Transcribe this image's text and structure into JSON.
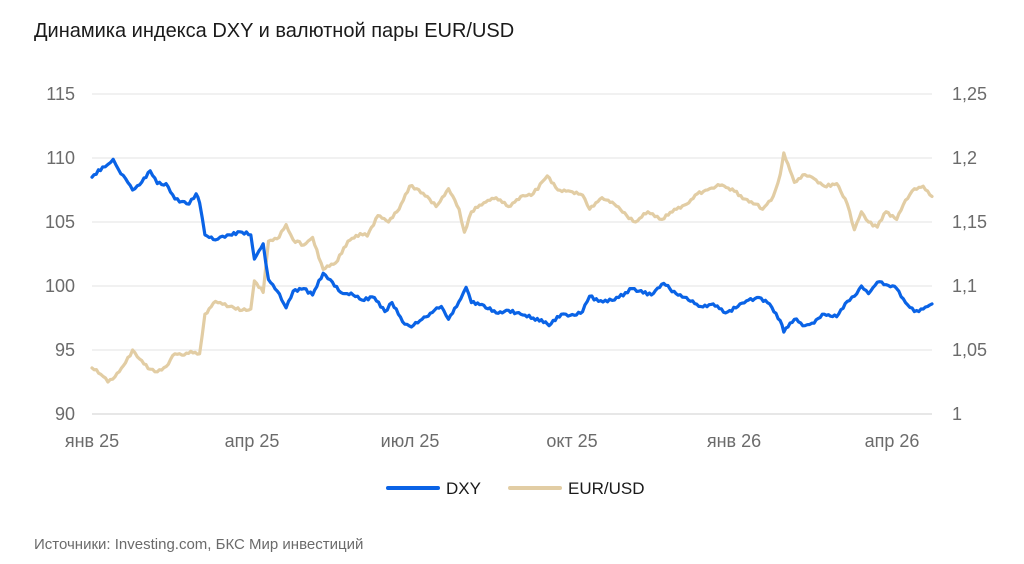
{
  "title": "Динамика индекса DXY и валютной пары EUR/USD",
  "source": "Источники: Investing.com, БКС Мир инвестиций",
  "chart_data": {
    "type": "line",
    "title": "Динамика индекса DXY и валютной пары EUR/USD",
    "x_ticks": [
      "янв 25",
      "апр 25",
      "июл 25",
      "окт 25",
      "янв 26",
      "апр 26"
    ],
    "y_left_ticks": [
      "90",
      "95",
      "100",
      "105",
      "110",
      "115"
    ],
    "y_right_ticks": [
      "1",
      "1,05",
      "1,1",
      "1,15",
      "1,2",
      "1,25"
    ],
    "y_left_range": [
      90,
      115
    ],
    "y_right_range": [
      1.0,
      1.25
    ],
    "x_range": [
      "2025-01-01",
      "2026-04-22"
    ],
    "grid": true,
    "legend_position": "bottom",
    "colors": {
      "DXY": "#0a63e6",
      "EUR/USD": "#e2cda4",
      "grid": "#e3e3e3"
    },
    "series": [
      {
        "name": "DXY",
        "axis": "left",
        "points": [
          [
            "2025-01-01",
            108.5
          ],
          [
            "2025-01-07",
            109.3
          ],
          [
            "2025-01-10",
            109.5
          ],
          [
            "2025-01-13",
            109.9
          ],
          [
            "2025-01-16",
            109.1
          ],
          [
            "2025-01-20",
            108.4
          ],
          [
            "2025-01-24",
            107.5
          ],
          [
            "2025-01-28",
            107.9
          ],
          [
            "2025-02-03",
            109.0
          ],
          [
            "2025-02-07",
            108.0
          ],
          [
            "2025-02-12",
            108.0
          ],
          [
            "2025-02-17",
            106.8
          ],
          [
            "2025-02-21",
            106.6
          ],
          [
            "2025-02-25",
            106.4
          ],
          [
            "2025-03-01",
            107.2
          ],
          [
            "2025-03-03",
            106.5
          ],
          [
            "2025-03-06",
            104.0
          ],
          [
            "2025-03-12",
            103.6
          ],
          [
            "2025-03-20",
            104.0
          ],
          [
            "2025-03-27",
            104.2
          ],
          [
            "2025-04-01",
            104.0
          ],
          [
            "2025-04-03",
            102.1
          ],
          [
            "2025-04-08",
            103.3
          ],
          [
            "2025-04-11",
            100.5
          ],
          [
            "2025-04-16",
            99.6
          ],
          [
            "2025-04-21",
            98.3
          ],
          [
            "2025-04-25",
            99.6
          ],
          [
            "2025-05-01",
            99.8
          ],
          [
            "2025-05-06",
            99.3
          ],
          [
            "2025-05-12",
            101.0
          ],
          [
            "2025-05-16",
            100.5
          ],
          [
            "2025-05-22",
            99.5
          ],
          [
            "2025-05-29",
            99.3
          ],
          [
            "2025-06-03",
            98.9
          ],
          [
            "2025-06-10",
            99.1
          ],
          [
            "2025-06-16",
            98.0
          ],
          [
            "2025-06-20",
            98.7
          ],
          [
            "2025-06-26",
            97.2
          ],
          [
            "2025-07-01",
            96.8
          ],
          [
            "2025-07-07",
            97.4
          ],
          [
            "2025-07-14",
            98.1
          ],
          [
            "2025-07-18",
            98.4
          ],
          [
            "2025-07-22",
            97.4
          ],
          [
            "2025-07-29",
            99.0
          ],
          [
            "2025-08-01",
            99.9
          ],
          [
            "2025-08-04",
            98.7
          ],
          [
            "2025-08-11",
            98.5
          ],
          [
            "2025-08-18",
            97.9
          ],
          [
            "2025-08-25",
            98.1
          ],
          [
            "2025-09-01",
            97.8
          ],
          [
            "2025-09-08",
            97.5
          ],
          [
            "2025-09-15",
            97.2
          ],
          [
            "2025-09-17",
            96.9
          ],
          [
            "2025-09-24",
            97.8
          ],
          [
            "2025-09-29",
            97.7
          ],
          [
            "2025-10-06",
            98.0
          ],
          [
            "2025-10-10",
            99.2
          ],
          [
            "2025-10-15",
            98.8
          ],
          [
            "2025-10-24",
            98.9
          ],
          [
            "2025-11-03",
            99.8
          ],
          [
            "2025-11-07",
            99.6
          ],
          [
            "2025-11-14",
            99.3
          ],
          [
            "2025-11-21",
            100.2
          ],
          [
            "2025-11-28",
            99.4
          ],
          [
            "2025-12-05",
            98.9
          ],
          [
            "2025-12-12",
            98.4
          ],
          [
            "2025-12-19",
            98.6
          ],
          [
            "2025-12-26",
            97.9
          ],
          [
            "2026-01-02",
            98.4
          ],
          [
            "2026-01-08",
            98.9
          ],
          [
            "2026-01-14",
            99.1
          ],
          [
            "2026-01-20",
            98.6
          ],
          [
            "2026-01-26",
            97.3
          ],
          [
            "2026-01-28",
            96.4
          ],
          [
            "2026-02-03",
            97.4
          ],
          [
            "2026-02-09",
            96.9
          ],
          [
            "2026-02-13",
            97.1
          ],
          [
            "2026-02-20",
            97.8
          ],
          [
            "2026-02-27",
            97.6
          ],
          [
            "2026-03-05",
            98.8
          ],
          [
            "2026-03-09",
            99.2
          ],
          [
            "2026-03-13",
            100.0
          ],
          [
            "2026-03-17",
            99.4
          ],
          [
            "2026-03-22",
            100.3
          ],
          [
            "2026-03-27",
            100.1
          ],
          [
            "2026-04-02",
            99.8
          ],
          [
            "2026-04-07",
            98.7
          ],
          [
            "2026-04-12",
            98.0
          ],
          [
            "2026-04-17",
            98.2
          ],
          [
            "2026-04-22",
            98.6
          ]
        ]
      },
      {
        "name": "EUR/USD",
        "axis": "right",
        "points": [
          [
            "2025-01-01",
            1.036
          ],
          [
            "2025-01-06",
            1.031
          ],
          [
            "2025-01-10",
            1.025
          ],
          [
            "2025-01-14",
            1.029
          ],
          [
            "2025-01-20",
            1.04
          ],
          [
            "2025-01-24",
            1.05
          ],
          [
            "2025-01-28",
            1.043
          ],
          [
            "2025-02-03",
            1.035
          ],
          [
            "2025-02-07",
            1.033
          ],
          [
            "2025-02-12",
            1.037
          ],
          [
            "2025-02-17",
            1.047
          ],
          [
            "2025-02-21",
            1.046
          ],
          [
            "2025-02-26",
            1.049
          ],
          [
            "2025-03-03",
            1.047
          ],
          [
            "2025-03-06",
            1.078
          ],
          [
            "2025-03-12",
            1.088
          ],
          [
            "2025-03-20",
            1.084
          ],
          [
            "2025-03-27",
            1.081
          ],
          [
            "2025-04-01",
            1.082
          ],
          [
            "2025-04-03",
            1.104
          ],
          [
            "2025-04-08",
            1.095
          ],
          [
            "2025-04-11",
            1.135
          ],
          [
            "2025-04-17",
            1.138
          ],
          [
            "2025-04-21",
            1.148
          ],
          [
            "2025-04-25",
            1.136
          ],
          [
            "2025-05-01",
            1.132
          ],
          [
            "2025-05-06",
            1.138
          ],
          [
            "2025-05-12",
            1.113
          ],
          [
            "2025-05-19",
            1.118
          ],
          [
            "2025-05-26",
            1.135
          ],
          [
            "2025-06-02",
            1.141
          ],
          [
            "2025-06-06",
            1.139
          ],
          [
            "2025-06-12",
            1.155
          ],
          [
            "2025-06-18",
            1.15
          ],
          [
            "2025-06-24",
            1.16
          ],
          [
            "2025-06-30",
            1.178
          ],
          [
            "2025-07-04",
            1.176
          ],
          [
            "2025-07-10",
            1.17
          ],
          [
            "2025-07-15",
            1.162
          ],
          [
            "2025-07-22",
            1.176
          ],
          [
            "2025-07-28",
            1.16
          ],
          [
            "2025-07-31",
            1.142
          ],
          [
            "2025-08-04",
            1.158
          ],
          [
            "2025-08-11",
            1.165
          ],
          [
            "2025-08-18",
            1.169
          ],
          [
            "2025-08-25",
            1.162
          ],
          [
            "2025-09-01",
            1.17
          ],
          [
            "2025-09-08",
            1.172
          ],
          [
            "2025-09-16",
            1.186
          ],
          [
            "2025-09-22",
            1.175
          ],
          [
            "2025-09-29",
            1.174
          ],
          [
            "2025-10-06",
            1.171
          ],
          [
            "2025-10-10",
            1.16
          ],
          [
            "2025-10-17",
            1.169
          ],
          [
            "2025-10-24",
            1.164
          ],
          [
            "2025-10-31",
            1.155
          ],
          [
            "2025-11-05",
            1.15
          ],
          [
            "2025-11-12",
            1.158
          ],
          [
            "2025-11-20",
            1.152
          ],
          [
            "2025-11-27",
            1.16
          ],
          [
            "2025-12-04",
            1.164
          ],
          [
            "2025-12-10",
            1.172
          ],
          [
            "2025-12-17",
            1.176
          ],
          [
            "2025-12-24",
            1.179
          ],
          [
            "2025-12-31",
            1.174
          ],
          [
            "2026-01-06",
            1.168
          ],
          [
            "2026-01-12",
            1.164
          ],
          [
            "2026-01-16",
            1.16
          ],
          [
            "2026-01-22",
            1.17
          ],
          [
            "2026-01-26",
            1.187
          ],
          [
            "2026-01-28",
            1.204
          ],
          [
            "2026-02-03",
            1.181
          ],
          [
            "2026-02-09",
            1.187
          ],
          [
            "2026-02-13",
            1.185
          ],
          [
            "2026-02-20",
            1.178
          ],
          [
            "2026-02-27",
            1.18
          ],
          [
            "2026-03-05",
            1.164
          ],
          [
            "2026-03-09",
            1.144
          ],
          [
            "2026-03-13",
            1.158
          ],
          [
            "2026-03-17",
            1.15
          ],
          [
            "2026-03-22",
            1.146
          ],
          [
            "2026-03-27",
            1.158
          ],
          [
            "2026-04-02",
            1.152
          ],
          [
            "2026-04-07",
            1.167
          ],
          [
            "2026-04-12",
            1.176
          ],
          [
            "2026-04-17",
            1.178
          ],
          [
            "2026-04-22",
            1.17
          ]
        ]
      }
    ]
  }
}
